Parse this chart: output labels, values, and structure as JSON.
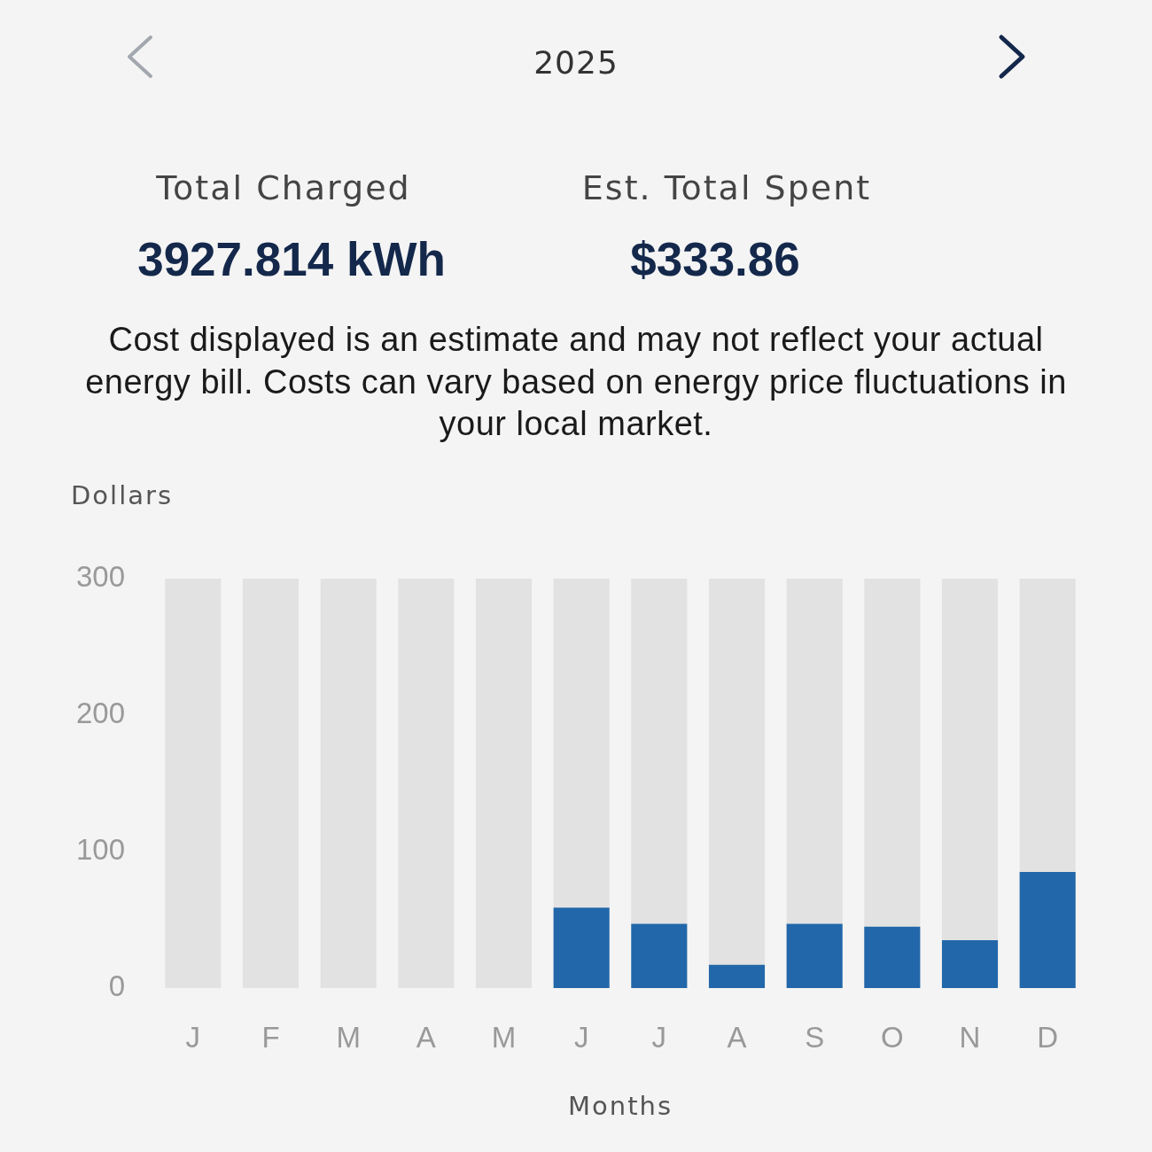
{
  "chart_data": {
    "type": "bar",
    "title": "2025",
    "annotations": [
      "Total Charged",
      "3927.814 kWh",
      "Est. Total Spent",
      "$333.86",
      "Cost displayed is an estimate and may not reflect your actual energy bill. Costs can vary based on energy price fluctuations in your local market."
    ],
    "xlabel": "Months",
    "ylabel": "Dollars",
    "categories": [
      "J",
      "F",
      "M",
      "A",
      "M",
      "J",
      "J",
      "A",
      "S",
      "O",
      "N",
      "D"
    ],
    "stacked": true,
    "series": [
      {
        "color": "#2167a9",
        "values": [
          0,
          0,
          0,
          0,
          0,
          59,
          47,
          17,
          47,
          45,
          35,
          85
        ]
      },
      {
        "color": "#e2e2e2",
        "values": [
          300,
          300,
          300,
          300,
          300,
          241,
          253,
          283,
          253,
          255,
          265,
          215
        ]
      }
    ],
    "ylim": [
      0,
      300
    ],
    "yticks": [
      0,
      100,
      200,
      300
    ],
    "grid": false,
    "legend": false
  }
}
